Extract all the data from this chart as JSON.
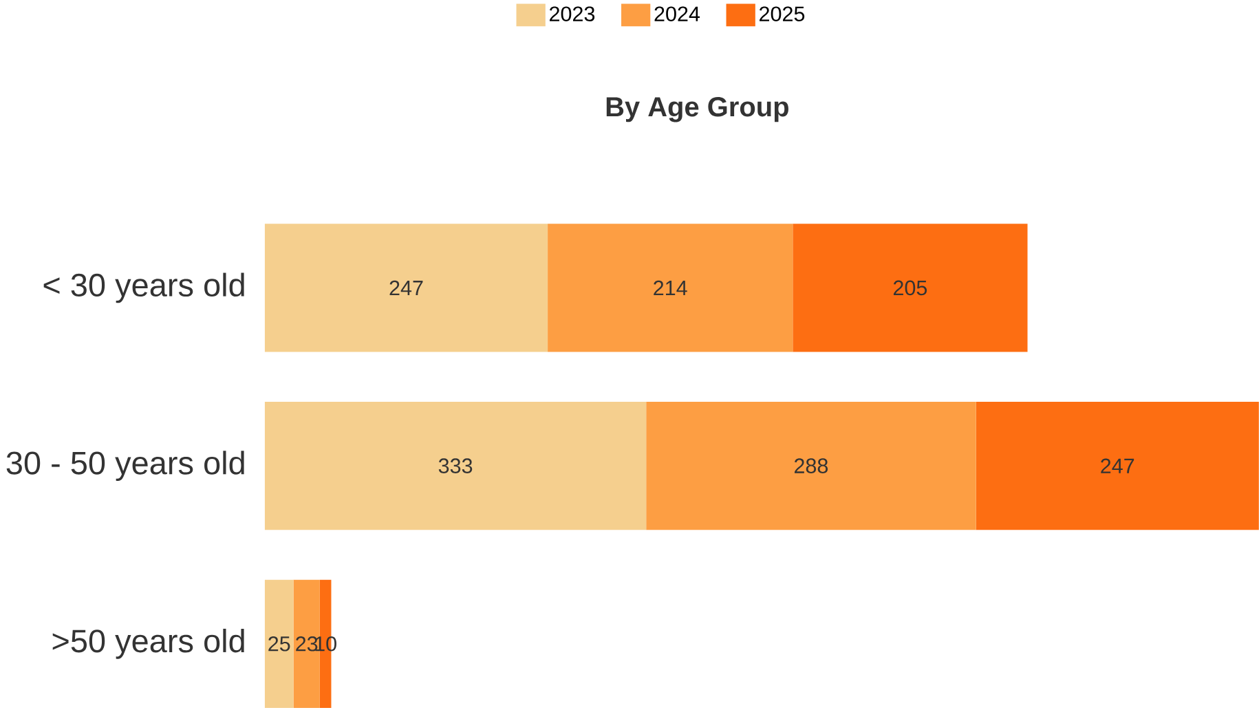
{
  "chart_data": {
    "type": "bar",
    "orientation": "horizontal",
    "stacked": true,
    "title": "By Age Group",
    "categories": [
      "< 30 years old",
      "30 - 50 years old",
      ">50 years old"
    ],
    "series": [
      {
        "name": "2023",
        "color": "#f5cf8e",
        "values": [
          247,
          333,
          25
        ]
      },
      {
        "name": "2024",
        "color": "#fd9e43",
        "values": [
          214,
          288,
          23
        ]
      },
      {
        "name": "2025",
        "color": "#fd6e12",
        "values": [
          205,
          247,
          10
        ]
      }
    ],
    "data_labels": true,
    "legend": "top"
  }
}
